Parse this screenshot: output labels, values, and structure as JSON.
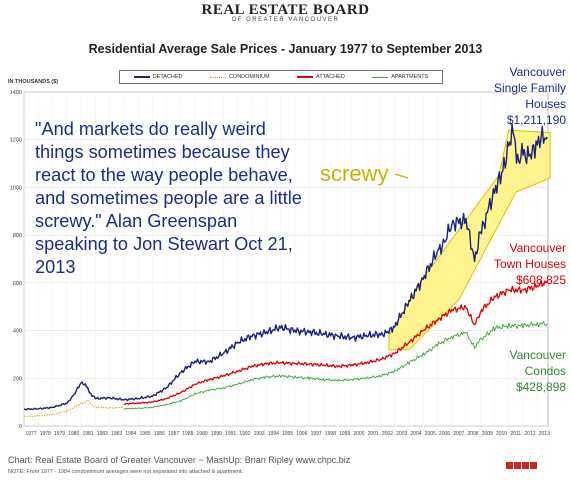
{
  "logo": {
    "main": "REAL ESTATE BOARD",
    "sub": "OF GREATER VANCOUVER"
  },
  "title": "Residential Average Sale Prices  -  January 1977 to September 2013",
  "units": "IN THOUSANDS ($)",
  "legend": [
    {
      "label": "DETACHED",
      "color": "#1a237e",
      "style": "solid"
    },
    {
      "label": "CONDOMINIUM",
      "color": "#f39c12",
      "style": "dotted"
    },
    {
      "label": "ATTACHED",
      "color": "#e00000",
      "style": "solid"
    },
    {
      "label": "APARTMENTS",
      "color": "#3aa33a",
      "style": "solid"
    }
  ],
  "quote": "\"And markets do really weird things sometimes because they react to the way people behave, and sometimes people are a little screwy.\" Alan Greenspan speaking to Jon Stewart Oct 21, 2013",
  "screwy": "screwy",
  "labels": {
    "detached": [
      "Vancouver",
      "Single Family",
      "Houses",
      "$1,211,190"
    ],
    "attached": [
      "Vancouver",
      "Town Houses",
      "$608,825"
    ],
    "apartments": [
      "Vancouver",
      "Condos",
      "$428,898"
    ]
  },
  "source": "Chart: Real Estate Board of Greater Vancouver ~ MashUp: Brian Ripley www.chpc.biz",
  "note": "NOTE:  From 1977 - 1984 condominium averages were not separated into attached & apartment.",
  "colors": {
    "detached": "#1a237e",
    "condo": "#f39c12",
    "attached": "#e00000",
    "apartments": "#3aa33a",
    "highlight": "#fff27a",
    "quote": "#1a2e8a"
  },
  "chart_data": {
    "type": "line",
    "xlabel": "",
    "ylabel": "IN THOUSANDS ($)",
    "xlim": [
      1977,
      2013.75
    ],
    "ylim": [
      0,
      1400
    ],
    "yticks": [
      0,
      200,
      400,
      600,
      800,
      1000,
      1200,
      1400
    ],
    "xticks": [
      1977,
      1978,
      1979,
      1980,
      1981,
      1982,
      1983,
      1984,
      1985,
      1986,
      1987,
      1988,
      1989,
      1990,
      1991,
      1992,
      1993,
      1994,
      1995,
      1996,
      1997,
      1998,
      1999,
      2000,
      2001,
      2002,
      2003,
      2004,
      2005,
      2006,
      2007,
      2008,
      2009,
      2010,
      2011,
      2012,
      2013
    ],
    "grid": true,
    "series": [
      {
        "name": "DETACHED",
        "x": [
          1977,
          1978,
          1979,
          1980,
          1980.5,
          1981,
          1981.3,
          1981.6,
          1982,
          1983,
          1984,
          1985,
          1986,
          1987,
          1988,
          1989,
          1990,
          1991,
          1992,
          1993,
          1994,
          1995,
          1996,
          1997,
          1998,
          1999,
          2000,
          2001,
          2002,
          2002.5,
          2003,
          2004,
          2005,
          2006,
          2006.5,
          2007,
          2008,
          2008.6,
          2009,
          2010,
          2010.5,
          2011,
          2011.3,
          2011.7,
          2012,
          2012.5,
          2013,
          2013.7
        ],
        "y": [
          70,
          72,
          78,
          95,
          130,
          182,
          175,
          140,
          115,
          118,
          110,
          115,
          125,
          160,
          225,
          270,
          270,
          305,
          350,
          378,
          392,
          415,
          398,
          395,
          385,
          378,
          370,
          378,
          385,
          390,
          420,
          520,
          620,
          730,
          770,
          850,
          860,
          700,
          800,
          990,
          1050,
          1180,
          1230,
          1100,
          1150,
          1120,
          1200,
          1211
        ]
      },
      {
        "name": "CONDOMINIUM",
        "x": [
          1977,
          1978,
          1979,
          1980,
          1981,
          1981.5,
          1982,
          1983,
          1984
        ],
        "y": [
          40,
          42,
          48,
          62,
          95,
          105,
          80,
          75,
          78
        ]
      },
      {
        "name": "ATTACHED",
        "x": [
          1984,
          1985,
          1986,
          1987,
          1988,
          1989,
          1990,
          1991,
          1992,
          1993,
          1994,
          1995,
          1996,
          1997,
          1998,
          1999,
          2000,
          2001,
          2002,
          2003,
          2004,
          2005,
          2006,
          2007,
          2008,
          2008.6,
          2009,
          2010,
          2011,
          2012,
          2013,
          2013.7
        ],
        "y": [
          92,
          96,
          100,
          115,
          140,
          175,
          195,
          210,
          230,
          250,
          262,
          265,
          262,
          260,
          255,
          250,
          255,
          265,
          278,
          305,
          350,
          400,
          445,
          485,
          500,
          420,
          480,
          540,
          570,
          570,
          585,
          609
        ]
      },
      {
        "name": "APARTMENTS",
        "x": [
          1984,
          1985,
          1986,
          1987,
          1988,
          1989,
          1990,
          1991,
          1992,
          1993,
          1994,
          1995,
          1996,
          1997,
          1998,
          1999,
          2000,
          2001,
          2002,
          2003,
          2004,
          2005,
          2006,
          2007,
          2008,
          2008.6,
          2009,
          2010,
          2011,
          2012,
          2013,
          2013.7
        ],
        "y": [
          72,
          74,
          78,
          90,
          105,
          135,
          150,
          160,
          175,
          195,
          205,
          210,
          205,
          200,
          195,
          190,
          195,
          200,
          210,
          230,
          265,
          300,
          340,
          375,
          390,
          330,
          360,
          410,
          420,
          420,
          428,
          429
        ]
      }
    ]
  }
}
